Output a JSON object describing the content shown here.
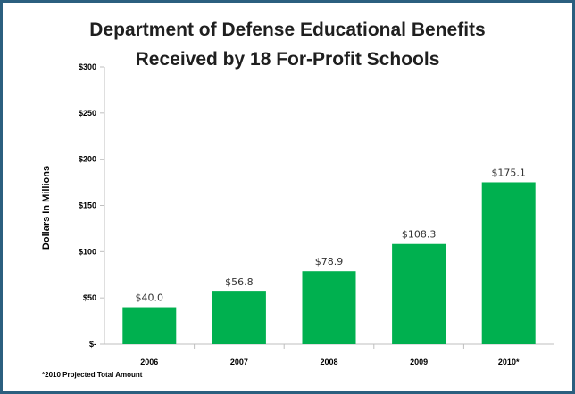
{
  "chart_data": {
    "type": "bar",
    "title_line1": "Department of Defense Educational Benefits",
    "title_line2": "Received by 18 For-Profit Schools",
    "ylabel": "Dollars In Millions",
    "xlabel": "",
    "categories": [
      "2006",
      "2007",
      "2008",
      "2009",
      "2010*"
    ],
    "values": [
      40.0,
      56.8,
      78.9,
      108.3,
      175.1
    ],
    "data_labels": [
      "$40.0",
      "$56.8",
      "$78.9",
      "$108.3",
      "$175.1"
    ],
    "ylim": [
      0,
      300
    ],
    "yticks": [
      0,
      50,
      100,
      150,
      200,
      250,
      300
    ],
    "ytick_labels": [
      "$-",
      "$50",
      "$100",
      "$150",
      "$200",
      "$250",
      "$300"
    ],
    "bar_color": "#00b04f",
    "grid": false,
    "legend": "none",
    "footnote": "*2010 Projected Total Amount"
  }
}
